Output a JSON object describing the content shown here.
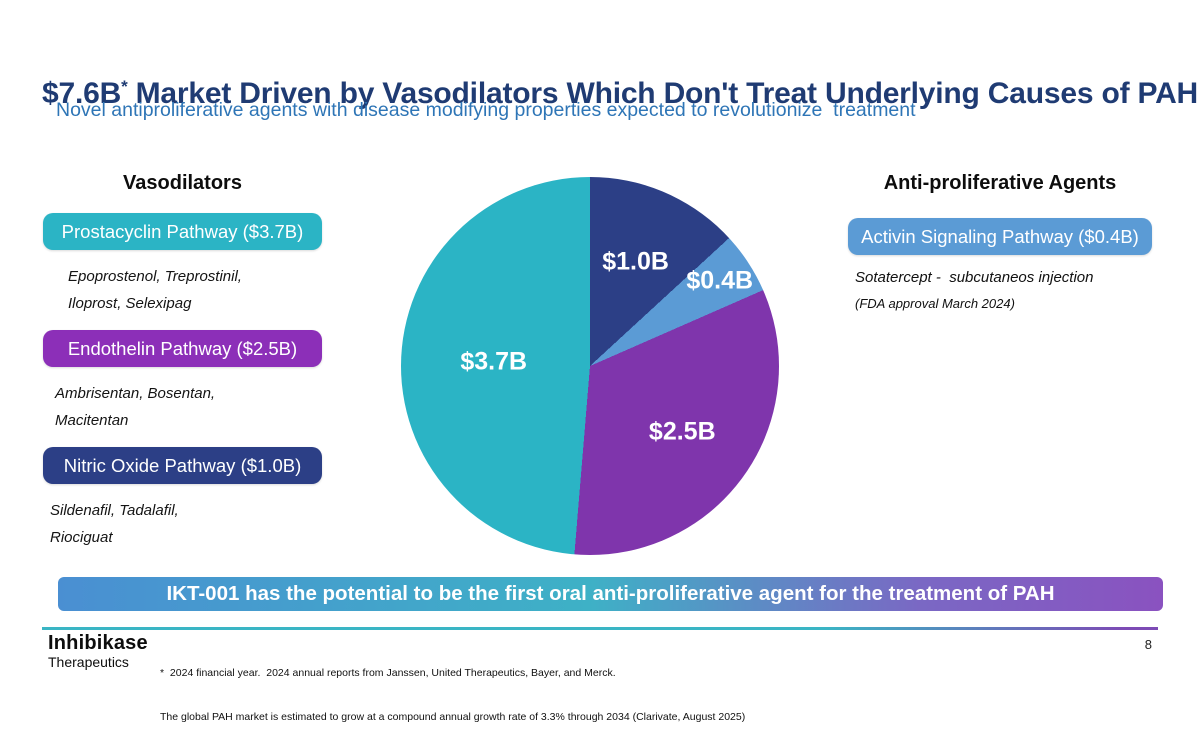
{
  "slide": {
    "title_prefix": "$7.6B",
    "title_superscript": "*",
    "title_rest": " Market Driven by Vasodilators Which Don't Treat Underlying Causes of PAH",
    "subtitle": "Novel antiproliferative agents with disease modifying properties expected to revolutionize  treatment",
    "page_number": "8"
  },
  "left_column": {
    "heading": "Vasodilators",
    "items": [
      {
        "label": "Prostacyclin Pathway ($3.7B)",
        "color": "#2bb4c5",
        "drugs": [
          "Epoprostenol, Treprostinil,",
          "Iloprost, Selexipag"
        ]
      },
      {
        "label": "Endothelin Pathway ($2.5B)",
        "color": "#8c2fb8",
        "drugs": [
          "Ambrisentan, Bosentan,",
          "Macitentan"
        ]
      },
      {
        "label": "Nitric Oxide Pathway ($1.0B)",
        "color": "#2c3f86",
        "drugs": [
          "Sildenafil, Tadalafil,",
          "Riociguat"
        ]
      }
    ]
  },
  "right_column": {
    "heading": "Anti-proliferative Agents",
    "items": [
      {
        "label": "Activin Signaling Pathway ($0.4B)",
        "color": "#5b9bd5"
      }
    ],
    "note_line1": "Sotatercept -  subcutaneos injection",
    "note_line2": "(FDA approval March 2024)"
  },
  "chart_data": {
    "type": "pie",
    "title": "",
    "total": 7.6,
    "units": "USD billions",
    "start_angle_deg": 0,
    "direction": "clockwise",
    "slices": [
      {
        "label": "$1.0B",
        "value": 1.0,
        "color": "#2c3f86"
      },
      {
        "label": "$0.4B",
        "value": 0.4,
        "color": "#5b9bd5"
      },
      {
        "label": "$2.5B",
        "value": 2.5,
        "color": "#7f35ac"
      },
      {
        "label": "$3.7B",
        "value": 3.7,
        "color": "#2bb4c5"
      }
    ],
    "label_radius": [
      0.6,
      0.82,
      0.6,
      0.51
    ]
  },
  "banner": {
    "text": "IKT-001 has the potential to be the first oral anti-proliferative agent for the treatment of PAH",
    "gradient": [
      "#4a8fd2",
      "#3eb1c6",
      "#7a68c4",
      "#8a52c0"
    ]
  },
  "footer": {
    "logo_line1": "Inhibikase",
    "logo_line2": "Therapeutics",
    "footnote_line1": "*  2024 financial year.  2024 annual reports from Janssen, United Therapeutics, Bayer, and Merck.",
    "footnote_line2": "The global PAH market is estimated to grow at a compound annual growth rate of 3.3% through 2034 (Clarivate, August 2025)",
    "separator_gradient": [
      "#3ab5c4",
      "#7d4bb5"
    ]
  }
}
